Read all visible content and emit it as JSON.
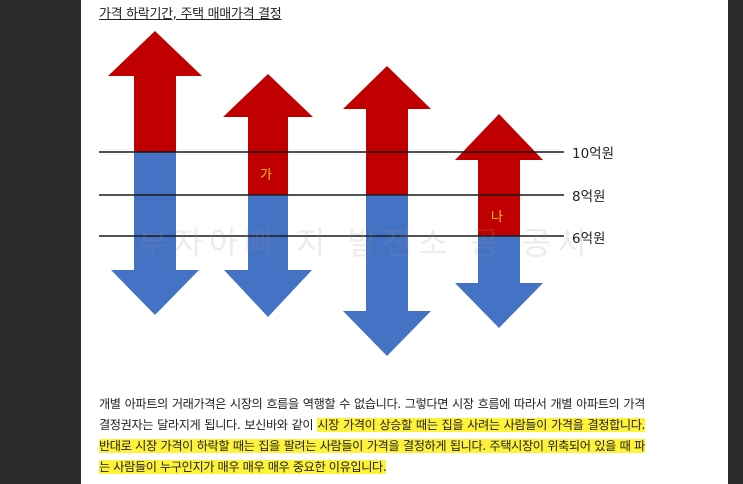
{
  "heading": "가격 하락기간, 주택 매매가격 결정",
  "watermark": "부자아빠 지 발전소 공 공서",
  "levels": {
    "l10": "10억원",
    "l8": "8억원",
    "l6": "6억원"
  },
  "arrow_labels": {
    "ga": "가",
    "na": "나"
  },
  "colors": {
    "red": "#c00000",
    "blue": "#4472c4",
    "highlight": "#fff23a"
  },
  "paragraph": {
    "part1": "개별 아파트의 거래가격은 시장의 흐름을 역행할 수 없습니다. 그렇다면 시장 흐름에 따라서 개별 아파트의 가격 결정권자는 달라지게 됩니다. 보신바와 같이 ",
    "part2_highlight": "시장 가격이 상승할 때는 집을 사려는 사람들이 가격을 결정합니다. 반대로 시장 가격이 하락할 때는 집을 팔려는 사람들이 가격을 결정하게 됩니다. 주택시장이 위축되어 있을 때 파는 사람들이 누구인지가 매우 매우 매우 중요한 이유입니다."
  }
}
